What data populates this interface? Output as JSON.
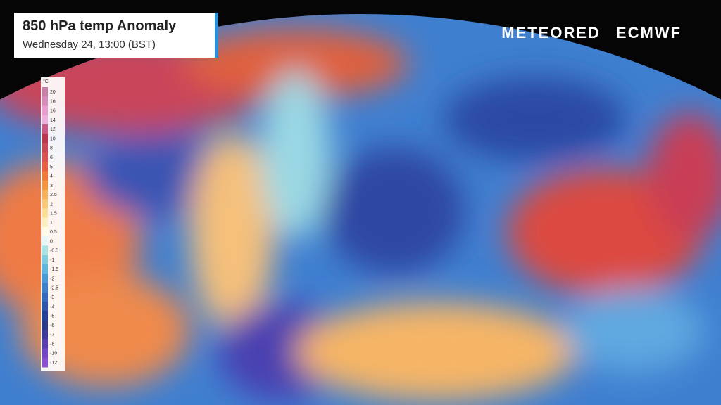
{
  "header": {
    "title": "850 hPa temp Anomaly",
    "subtitle": "Wednesday 24, 13:00 (BST)"
  },
  "logos": {
    "left": "METEORED",
    "right": "ECMWF"
  },
  "legend": {
    "unit": "°C",
    "labels": [
      "20",
      "18",
      "16",
      "14",
      "12",
      "10",
      "8",
      "6",
      "5",
      "4",
      "3",
      "2.5",
      "2",
      "1.5",
      "1",
      "0.5",
      "0",
      "-0.5",
      "-1",
      "-1.5",
      "-2",
      "-2.5",
      "-3",
      "-4",
      "-5",
      "-6",
      "-7",
      "-8",
      "-10",
      "-12"
    ],
    "colors": [
      "#c77fa8",
      "#d68cbb",
      "#e89fcf",
      "#f0b0dd",
      "#c95a85",
      "#b8384f",
      "#c84a55",
      "#d9534f",
      "#e8603f",
      "#f07a3a",
      "#f5953f",
      "#f7b15a",
      "#f9c977",
      "#fbe09a",
      "#fdf0c0",
      "#fffbe8",
      "#e8f7f7",
      "#a9e3e6",
      "#7ecde0",
      "#60b4e0",
      "#4b9ad8",
      "#3e82cc",
      "#356bbf",
      "#2d56ad",
      "#24429a",
      "#2a3a8a",
      "#3d3a9c",
      "#5a3fb3",
      "#7446c4",
      "#8a4fd0"
    ]
  }
}
